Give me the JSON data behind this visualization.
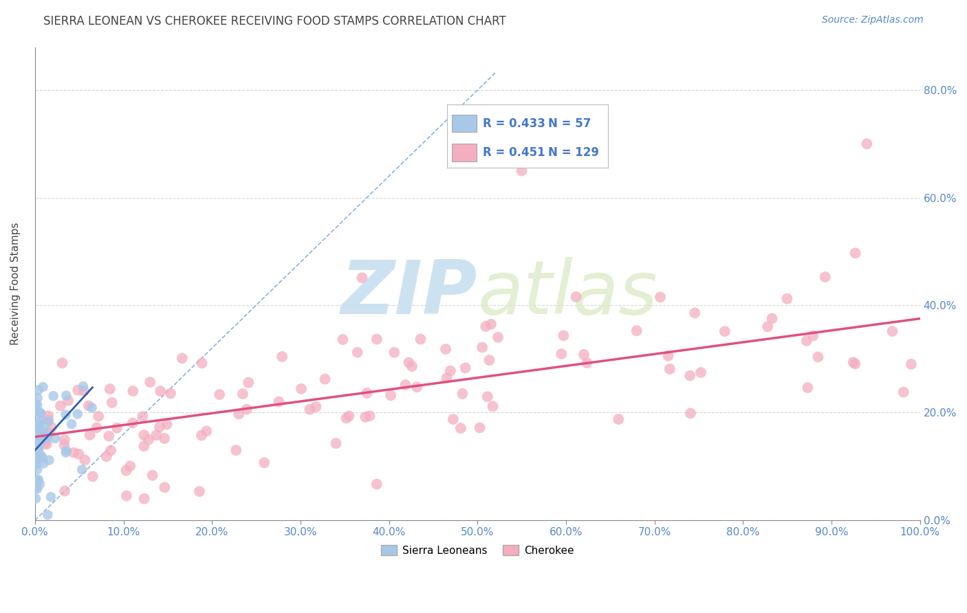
{
  "title": "SIERRA LEONEAN VS CHEROKEE RECEIVING FOOD STAMPS CORRELATION CHART",
  "source": "Source: ZipAtlas.com",
  "ylabel": "Receiving Food Stamps",
  "xlim": [
    0.0,
    1.0
  ],
  "ylim": [
    0.0,
    0.88
  ],
  "xtick_vals": [
    0.0,
    0.1,
    0.2,
    0.3,
    0.4,
    0.5,
    0.6,
    0.7,
    0.8,
    0.9,
    1.0
  ],
  "ytick_vals": [
    0.0,
    0.2,
    0.4,
    0.6,
    0.8
  ],
  "legend_r_blue": "0.433",
  "legend_n_blue": "57",
  "legend_r_pink": "0.451",
  "legend_n_pink": "129",
  "blue_color": "#a8c8e8",
  "pink_color": "#f4aec0",
  "blue_line_color": "#3060b0",
  "pink_line_color": "#e05080",
  "dash_line_color": "#6090c8",
  "watermark_color": "#c8dff0",
  "background_color": "#ffffff",
  "grid_color": "#cccccc",
  "title_color": "#444444",
  "axis_tick_color": "#5588cc",
  "legend_r_color": "#4477cc",
  "legend_n_color": "#4477cc",
  "title_fontsize": 12,
  "source_fontsize": 10,
  "tick_fontsize": 11,
  "ylabel_fontsize": 11,
  "legend_fontsize": 12
}
